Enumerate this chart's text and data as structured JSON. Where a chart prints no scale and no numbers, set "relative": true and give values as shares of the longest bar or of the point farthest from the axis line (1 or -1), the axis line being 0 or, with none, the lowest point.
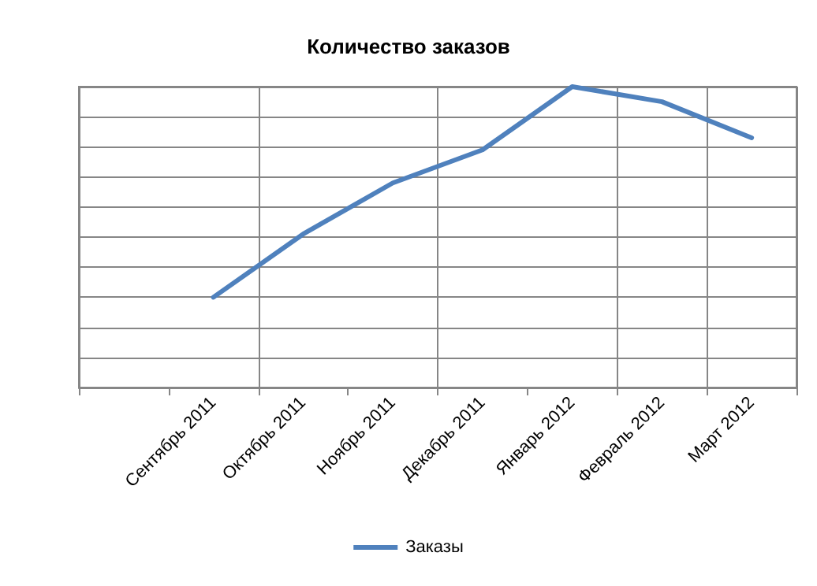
{
  "chart_data": {
    "type": "line",
    "title": "Количество заказов",
    "categories": [
      null,
      "Сентябрь 2011",
      "Октябрь 2011",
      "Ноябрь 2011",
      "Декабрь 2011",
      "Январь 2012",
      "Февраль 2012",
      "Март 2012"
    ],
    "series": [
      {
        "name": "Заказы",
        "color": "#4f81bd",
        "values": [
          null,
          0.3,
          0.51,
          0.68,
          0.79,
          1,
          0.95,
          0.83
        ]
      }
    ],
    "relative": true,
    "grid": true,
    "legend": "bottom",
    "marker": "none"
  }
}
